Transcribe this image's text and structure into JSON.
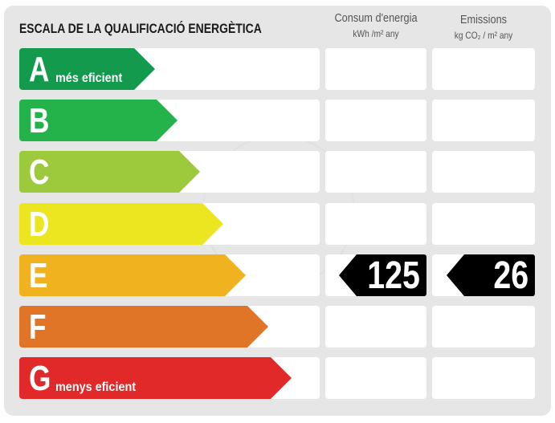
{
  "title": "ESCALA DE LA QUALIFICACIÓ ENERGÈTICA",
  "columns": {
    "consumption": {
      "label": "Consum d'energia",
      "unit": "kWh /m² any"
    },
    "emissions": {
      "label": "Emissions",
      "unit": "kg CO₂ / m² any"
    }
  },
  "ratings": [
    {
      "letter": "A",
      "note": "més eficient",
      "color": "#139a4c"
    },
    {
      "letter": "B",
      "note": "",
      "color": "#24b34b"
    },
    {
      "letter": "C",
      "note": "",
      "color": "#9cca3c"
    },
    {
      "letter": "D",
      "note": "",
      "color": "#ebe620"
    },
    {
      "letter": "E",
      "note": "",
      "color": "#f0b31f"
    },
    {
      "letter": "F",
      "note": "",
      "color": "#e07427"
    },
    {
      "letter": "G",
      "note": "menys eficient",
      "color": "#e2292a"
    }
  ],
  "result": {
    "rating": "E",
    "consumption": "125",
    "emissions": "26"
  }
}
